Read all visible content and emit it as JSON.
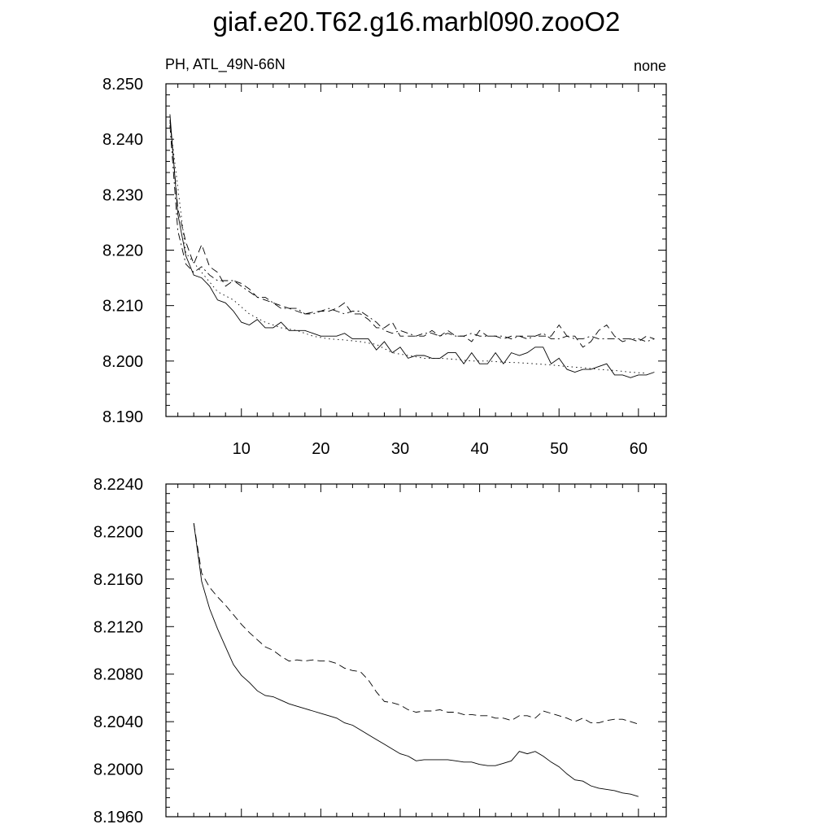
{
  "title": "giaf.e20.T62.g16.marbl090.zooO2",
  "chart_data": [
    {
      "type": "line",
      "left_label": "PH, ATL_49N-66N",
      "right_label": "none",
      "xlim": [
        0.5,
        63.5
      ],
      "ylim": [
        8.19,
        8.25
      ],
      "x_ticks": [
        10,
        20,
        30,
        40,
        50,
        60
      ],
      "x_tick_labels": [
        "10",
        "20",
        "30",
        "40",
        "50",
        "60"
      ],
      "y_ticks": [
        8.19,
        8.2,
        8.21,
        8.22,
        8.23,
        8.24,
        8.25
      ],
      "y_tick_labels": [
        "8.190",
        "8.200",
        "8.210",
        "8.220",
        "8.230",
        "8.240",
        "8.250"
      ],
      "series": [
        {
          "style": "solid",
          "x": [
            1,
            2,
            3,
            4,
            5,
            6,
            7,
            8,
            9,
            10,
            11,
            12,
            13,
            14,
            15,
            16,
            17,
            18,
            19,
            20,
            21,
            22,
            23,
            24,
            25,
            26,
            27,
            28,
            29,
            30,
            31,
            32,
            33,
            34,
            35,
            36,
            37,
            38,
            39,
            40,
            41,
            42,
            43,
            44,
            45,
            46,
            47,
            48,
            49,
            50,
            51,
            52,
            53,
            54,
            55,
            56,
            57,
            58,
            59,
            60,
            61,
            62
          ],
          "values": [
            8.2445,
            8.2265,
            8.219,
            8.2155,
            8.215,
            8.2135,
            8.211,
            8.2105,
            8.209,
            8.207,
            8.2065,
            8.2075,
            8.206,
            8.206,
            8.207,
            8.2055,
            8.2055,
            8.2055,
            8.205,
            8.2045,
            8.2045,
            8.2045,
            8.205,
            8.204,
            8.204,
            8.204,
            8.202,
            8.2035,
            8.2015,
            8.2025,
            8.2005,
            8.201,
            8.201,
            8.2005,
            8.2005,
            8.2015,
            8.2015,
            8.1995,
            8.2015,
            8.1995,
            8.1995,
            8.2015,
            8.1995,
            8.2015,
            8.201,
            8.2015,
            8.2025,
            8.2025,
            8.1995,
            8.2005,
            8.1985,
            8.198,
            8.1985,
            8.1985,
            8.199,
            8.1995,
            8.1975,
            8.1975,
            8.197,
            8.1975,
            8.1975,
            8.198
          ]
        },
        {
          "style": "dotted",
          "x": [
            1,
            3,
            5,
            7,
            9,
            11,
            13,
            15,
            17,
            19,
            21,
            23,
            25,
            27,
            29,
            31,
            33,
            35,
            37,
            39,
            41,
            43,
            45,
            47,
            49,
            51,
            53,
            55,
            57,
            59,
            61
          ],
          "values": [
            8.243,
            8.2195,
            8.216,
            8.2125,
            8.211,
            8.2085,
            8.207,
            8.206,
            8.2055,
            8.2045,
            8.204,
            8.2038,
            8.2035,
            8.203,
            8.2015,
            8.201,
            8.2005,
            8.2005,
            8.2003,
            8.2,
            8.2,
            8.1998,
            8.1997,
            8.1995,
            8.1993,
            8.199,
            8.1988,
            8.1985,
            8.1983,
            8.198,
            8.1978
          ]
        },
        {
          "style": "dashed",
          "x": [
            1,
            2,
            3,
            4,
            5,
            6,
            7,
            8,
            9,
            10,
            11,
            12,
            13,
            14,
            15,
            16,
            17,
            18,
            19,
            20,
            21,
            22,
            23,
            24,
            25,
            26,
            27,
            28,
            29,
            30,
            31,
            32,
            33,
            34,
            35,
            36,
            37,
            38,
            39,
            40,
            41,
            42,
            43,
            44,
            45,
            46,
            47,
            48,
            49,
            50,
            51,
            52,
            53,
            54,
            55,
            56,
            57,
            58,
            59,
            60,
            61,
            62
          ],
          "values": [
            8.2435,
            8.2275,
            8.2215,
            8.2175,
            8.221,
            8.217,
            8.216,
            8.2135,
            8.2145,
            8.214,
            8.213,
            8.2115,
            8.211,
            8.2105,
            8.21,
            8.2095,
            8.209,
            8.2085,
            8.2088,
            8.209,
            8.209,
            8.2095,
            8.2105,
            8.2085,
            8.2085,
            8.2075,
            8.206,
            8.206,
            8.207,
            8.2045,
            8.2045,
            8.2045,
            8.2045,
            8.2055,
            8.2045,
            8.2055,
            8.2045,
            8.2045,
            8.2035,
            8.2055,
            8.2045,
            8.2045,
            8.204,
            8.2045,
            8.2045,
            8.2045,
            8.2045,
            8.2045,
            8.2045,
            8.2065,
            8.2045,
            8.2045,
            8.2025,
            8.2035,
            8.2055,
            8.2065,
            8.2045,
            8.2035,
            8.204,
            8.2035,
            8.2045,
            8.204
          ]
        },
        {
          "style": "dashdot",
          "x": [
            1,
            2,
            3,
            4,
            5,
            6,
            7,
            8,
            9,
            10,
            11,
            12,
            13,
            14,
            15,
            16,
            17,
            18,
            19,
            20,
            21,
            22,
            23,
            24,
            25,
            26,
            27,
            28,
            29,
            30,
            31,
            32,
            33,
            34,
            35,
            36,
            37,
            38,
            39,
            40,
            41,
            42,
            43,
            44,
            45,
            46,
            47,
            48,
            49,
            50,
            51,
            52,
            53,
            54,
            55,
            56,
            57,
            58,
            59,
            60,
            61,
            62
          ],
          "values": [
            8.2425,
            8.2235,
            8.2175,
            8.216,
            8.217,
            8.2155,
            8.2145,
            8.2145,
            8.2145,
            8.2135,
            8.2125,
            8.2115,
            8.2115,
            8.2105,
            8.2095,
            8.2095,
            8.2095,
            8.2085,
            8.2085,
            8.209,
            8.2095,
            8.209,
            8.2085,
            8.209,
            8.209,
            8.208,
            8.207,
            8.2055,
            8.205,
            8.2055,
            8.205,
            8.2045,
            8.205,
            8.205,
            8.2045,
            8.205,
            8.2045,
            8.2045,
            8.205,
            8.2045,
            8.2045,
            8.2045,
            8.2045,
            8.204,
            8.2045,
            8.204,
            8.2045,
            8.205,
            8.204,
            8.204,
            8.2045,
            8.204,
            8.204,
            8.2045,
            8.204,
            8.204,
            8.204,
            8.204,
            8.204,
            8.204,
            8.2035,
            8.204
          ]
        }
      ]
    },
    {
      "type": "line",
      "xlim": [
        0.5,
        63.5
      ],
      "ylim": [
        8.196,
        8.224
      ],
      "x_ticks": [
        10,
        20,
        30,
        40,
        50,
        60
      ],
      "y_ticks": [
        8.196,
        8.2,
        8.204,
        8.208,
        8.212,
        8.216,
        8.22,
        8.224
      ],
      "y_tick_labels": [
        "8.1960",
        "8.2000",
        "8.2040",
        "8.2080",
        "8.2120",
        "8.2160",
        "8.2200",
        "8.2240"
      ],
      "series": [
        {
          "style": "solid",
          "x": [
            4,
            5,
            6,
            7,
            8,
            9,
            10,
            11,
            12,
            13,
            14,
            15,
            16,
            17,
            18,
            19,
            20,
            21,
            22,
            23,
            24,
            25,
            26,
            27,
            28,
            29,
            30,
            31,
            32,
            33,
            34,
            35,
            36,
            37,
            38,
            39,
            40,
            41,
            42,
            43,
            44,
            45,
            46,
            47,
            48,
            49,
            50,
            51,
            52,
            53,
            54,
            55,
            56,
            57,
            58,
            59,
            60
          ],
          "values": [
            8.2207,
            8.2158,
            8.2135,
            8.2118,
            8.2103,
            8.2088,
            8.2079,
            8.2073,
            8.2066,
            8.2062,
            8.2061,
            8.2058,
            8.2055,
            8.2053,
            8.2051,
            8.2049,
            8.2047,
            8.2045,
            8.2043,
            8.2039,
            8.2037,
            8.2033,
            8.2029,
            8.2025,
            8.2021,
            8.2017,
            8.2013,
            8.2011,
            8.2007,
            8.2008,
            8.2008,
            8.2008,
            8.2008,
            8.2007,
            8.2006,
            8.2006,
            8.2004,
            8.2003,
            8.2003,
            8.2005,
            8.2007,
            8.2015,
            8.2013,
            8.2015,
            8.2011,
            8.2006,
            8.2002,
            8.1996,
            8.1991,
            8.199,
            8.1986,
            8.1984,
            8.1983,
            8.1982,
            8.198,
            8.1979,
            8.1977
          ]
        },
        {
          "style": "dashed",
          "x": [
            4,
            5,
            6,
            7,
            8,
            9,
            10,
            11,
            12,
            13,
            14,
            15,
            16,
            17,
            18,
            19,
            20,
            21,
            22,
            23,
            24,
            25,
            26,
            27,
            28,
            29,
            30,
            31,
            32,
            33,
            34,
            35,
            36,
            37,
            38,
            39,
            40,
            41,
            42,
            43,
            44,
            45,
            46,
            47,
            48,
            49,
            50,
            51,
            52,
            53,
            54,
            55,
            56,
            57,
            58,
            59,
            60
          ],
          "values": [
            8.2207,
            8.2165,
            8.2153,
            8.2145,
            8.2138,
            8.213,
            8.2122,
            8.2115,
            8.2109,
            8.2103,
            8.21,
            8.2095,
            8.2091,
            8.2092,
            8.2091,
            8.2092,
            8.2091,
            8.2091,
            8.2089,
            8.2085,
            8.2083,
            8.2082,
            8.2075,
            8.2065,
            8.2057,
            8.2056,
            8.2054,
            8.205,
            8.2048,
            8.2049,
            8.2049,
            8.205,
            8.2048,
            8.2048,
            8.2046,
            8.2046,
            8.2045,
            8.2045,
            8.2043,
            8.2043,
            8.2041,
            8.2045,
            8.2045,
            8.2043,
            8.2049,
            8.2047,
            8.2045,
            8.2043,
            8.204,
            8.2043,
            8.2039,
            8.2039,
            8.2041,
            8.2042,
            8.2042,
            8.204,
            8.2038
          ]
        }
      ]
    }
  ]
}
